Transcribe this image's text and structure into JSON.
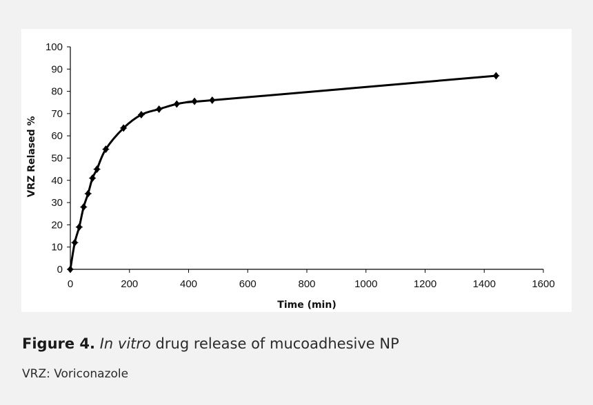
{
  "chart_data": {
    "type": "line",
    "xlabel": "Time (min)",
    "ylabel": "VRZ Relased %",
    "xlim": [
      0,
      1600
    ],
    "ylim": [
      0,
      100
    ],
    "x_ticks": [
      0,
      200,
      400,
      600,
      800,
      1000,
      1200,
      1400,
      1600
    ],
    "y_ticks": [
      0,
      10,
      20,
      30,
      40,
      50,
      60,
      70,
      80,
      90,
      100
    ],
    "grid": false,
    "legend": "none",
    "series": [
      {
        "x": [
          0,
          15,
          30,
          45,
          60,
          75,
          90,
          120,
          180,
          240,
          300,
          360,
          420,
          480,
          1440
        ],
        "y": [
          0,
          12,
          19,
          28,
          34,
          41,
          45,
          54,
          63.5,
          69.5,
          72,
          74.3,
          75.5,
          76,
          87
        ],
        "color": "#000000",
        "marker": "diamond"
      }
    ]
  },
  "caption": {
    "figure_label": "Figure 4.",
    "italic_text": "In vitro",
    "rest_text": " drug release of mucoadhesive NP"
  },
  "footnote": "VRZ: Voriconazole"
}
